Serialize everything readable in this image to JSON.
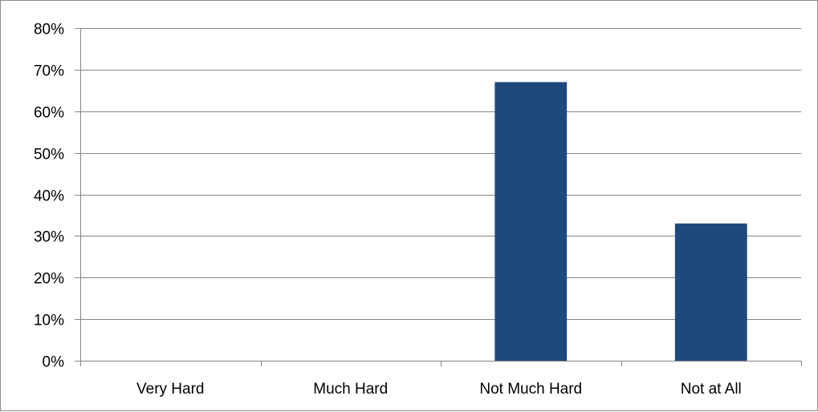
{
  "chart_data": {
    "type": "bar",
    "categories": [
      "Very Hard",
      "Much Hard",
      "Not Much Hard",
      "Not at All"
    ],
    "values": [
      0,
      0,
      67,
      33
    ],
    "value_format": "percent",
    "ylim": [
      0,
      80
    ],
    "y_ticks": [
      "0%",
      "10%",
      "20%",
      "30%",
      "40%",
      "50%",
      "60%",
      "70%",
      "80%"
    ],
    "title": "",
    "xlabel": "",
    "ylabel": "",
    "grid": true,
    "legend": "none",
    "colors": {
      "bar": "#1F497D",
      "grid": "#868686",
      "axis": "#868686"
    }
  }
}
